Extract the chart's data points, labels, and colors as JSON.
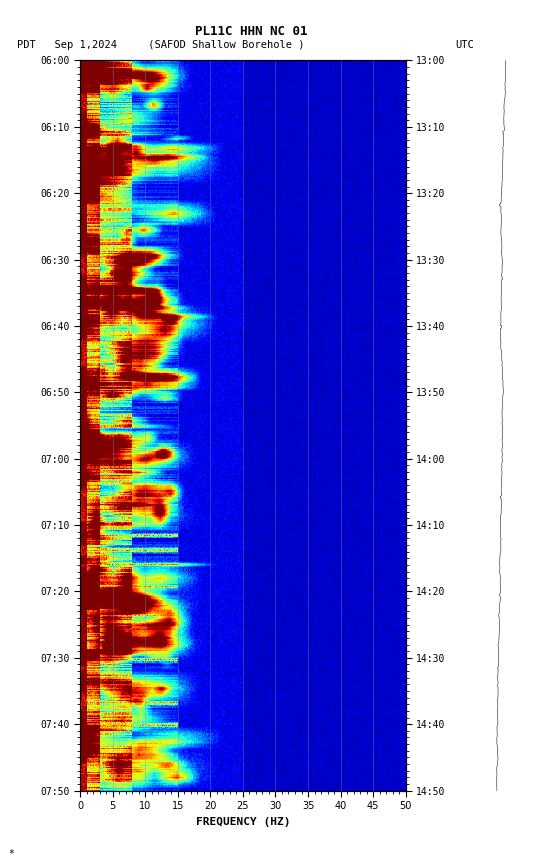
{
  "title_line1": "PL11C HHN NC 01",
  "title_line2_left": "PDT   Sep 1,2024     (SAFOD Shallow Borehole )",
  "title_line2_right": "UTC",
  "xlabel": "FREQUENCY (HZ)",
  "freq_min": 0,
  "freq_max": 50,
  "freq_ticks": [
    0,
    5,
    10,
    15,
    20,
    25,
    30,
    35,
    40,
    45,
    50
  ],
  "time_left_labels": [
    "06:00",
    "06:10",
    "06:20",
    "06:30",
    "06:40",
    "06:50",
    "07:00",
    "07:10",
    "07:20",
    "07:30",
    "07:40",
    "07:50"
  ],
  "time_right_labels": [
    "13:00",
    "13:10",
    "13:20",
    "13:30",
    "13:40",
    "13:50",
    "14:00",
    "14:10",
    "14:20",
    "14:30",
    "14:40",
    "14:50"
  ],
  "n_time_bins": 660,
  "n_freq_bins": 500,
  "seed": 42,
  "colormap": "jet",
  "background_color": "#ffffff",
  "fig_width": 5.52,
  "fig_height": 8.64,
  "dpi": 100
}
